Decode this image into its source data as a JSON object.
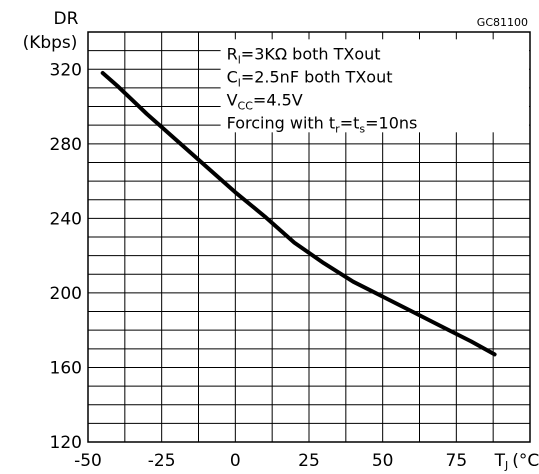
{
  "chart_data": {
    "type": "line",
    "ylabel_lines": [
      "DR",
      "(Kbps)"
    ],
    "xlabel": "Tₗ (°C)",
    "xlabel_main": "T",
    "xlabel_sub": "J",
    "xlabel_unit": "(°C)",
    "code": "GC81100",
    "xlim": [
      -50,
      100
    ],
    "ylim": [
      120,
      340
    ],
    "x_ticks": [
      -50,
      -25,
      0,
      25,
      50,
      75
    ],
    "y_ticks": [
      120,
      160,
      200,
      240,
      280,
      320
    ],
    "grid": true,
    "annotation_lines": [
      {
        "parts": [
          [
            "R",
            ""
          ],
          [
            "l",
            "sub"
          ],
          [
            "=3KΩ  both  TXout",
            ""
          ]
        ]
      },
      {
        "parts": [
          [
            "C",
            ""
          ],
          [
            "l",
            "sub"
          ],
          [
            "=2.5nF both  TXout",
            ""
          ]
        ]
      },
      {
        "parts": [
          [
            "V",
            ""
          ],
          [
            "CC",
            "sub"
          ],
          [
            "=4.5V",
            ""
          ]
        ]
      },
      {
        "parts": [
          [
            "Forcing  with  t",
            ""
          ],
          [
            "r",
            "sub"
          ],
          [
            "=t",
            ""
          ],
          [
            "s",
            "sub"
          ],
          [
            "=10ns",
            ""
          ]
        ]
      }
    ],
    "series": [
      {
        "x": [
          -45,
          -40,
          -30,
          -20,
          -10,
          0,
          10,
          20,
          30,
          40,
          50,
          60,
          70,
          80,
          88
        ],
        "y": [
          318,
          311,
          296,
          282,
          268,
          254,
          241,
          227,
          216,
          206,
          198,
          190,
          182,
          174,
          167
        ]
      }
    ]
  }
}
